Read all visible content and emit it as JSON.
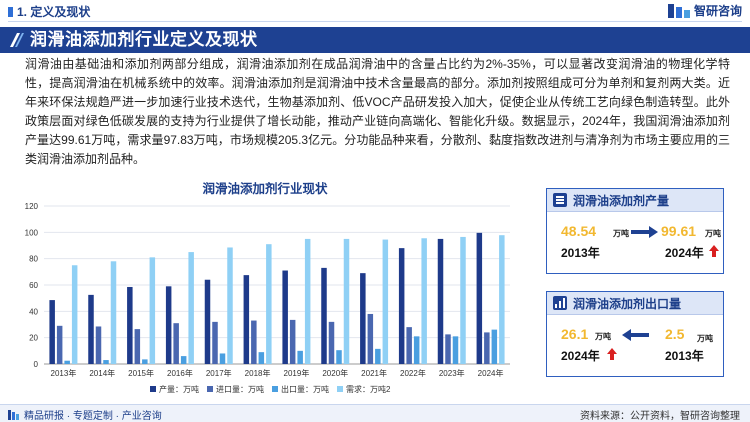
{
  "header": {
    "section": "1. 定义及现状",
    "brand": "智研咨询"
  },
  "title": "润滑油添加剂行业定义及现状",
  "body": "润滑油由基础油和添加剂两部分组成，润滑油添加剂在成品润滑油中的含量占比约为2%-35%，可以显著改变润滑油的物理化学特性，提高润滑油在机械系统中的效率。润滑油添加剂是润滑油中技术含量最高的部分。添加剂按照组成可分为单剂和复剂两大类。近年来环保法规趋严进一步加速行业技术迭代，生物基添加剂、低VOC产品研发投入加大，促使企业从传统工艺向绿色制造转型。此外政策层面对绿色低碳发展的支持为行业提供了增长动能，推动产业链向高端化、智能化升级。数据显示，2024年，我国润滑油添加剂产量达99.61万吨，需求量97.83万吨，市场规模205.3亿元。分功能品种来看，分散剂、黏度指数改进剂与清净剂为市场主要应用的三类润滑油添加剂品种。",
  "chart_data": {
    "type": "bar",
    "title": "润滑油添加剂行业现状",
    "categories": [
      "2013年",
      "2014年",
      "2015年",
      "2016年",
      "2017年",
      "2018年",
      "2019年",
      "2020年",
      "2021年",
      "2022年",
      "2023年",
      "2024年"
    ],
    "ylim": [
      0,
      120
    ],
    "yticks": [
      0,
      20,
      40,
      60,
      80,
      100,
      120
    ],
    "grid": true,
    "legend_position": "bottom",
    "series": [
      {
        "name": "产量：万吨",
        "color": "#1e3a8a",
        "values": [
          48.54,
          52.5,
          58.5,
          59,
          64,
          67.5,
          71,
          73,
          69,
          88,
          95,
          99.61
        ]
      },
      {
        "name": "进口量：万吨",
        "color": "#4a67b0",
        "values": [
          29,
          28.5,
          26.5,
          31,
          32,
          33,
          33.5,
          32,
          38,
          28,
          22.5,
          24
        ]
      },
      {
        "name": "出口量：万吨",
        "color": "#4a9fe0",
        "values": [
          2.5,
          3,
          3.5,
          6,
          8,
          9,
          10,
          10.5,
          11.5,
          21,
          21,
          26.1
        ]
      },
      {
        "name": "需求：万吨2",
        "color": "#8fd0f5",
        "values": [
          75,
          78,
          81,
          85,
          88.5,
          91,
          95,
          95,
          94.5,
          95.5,
          96.5,
          97.83
        ]
      }
    ]
  },
  "cards": [
    {
      "title": "润滑油添加剂产量",
      "from_value": "48.54",
      "from_unit": "万吨",
      "from_year": "2013年",
      "to_value": "99.61",
      "to_unit": "万吨",
      "to_year": "2024年"
    },
    {
      "title": "润滑油添加剂出口量",
      "from_value": "26.1",
      "from_unit": "万吨",
      "from_year": "2024年",
      "to_value": "2.5",
      "to_unit": "万吨",
      "to_year": "2013年"
    }
  ],
  "footer": {
    "left": "精品研报 · 专题定制 · 产业咨询",
    "right": "资料来源：公开资料，智研咨询整理"
  },
  "colors": {
    "brand": "#1e4192",
    "accent_value": "#f2b830",
    "up_arrow": "#d92020"
  }
}
